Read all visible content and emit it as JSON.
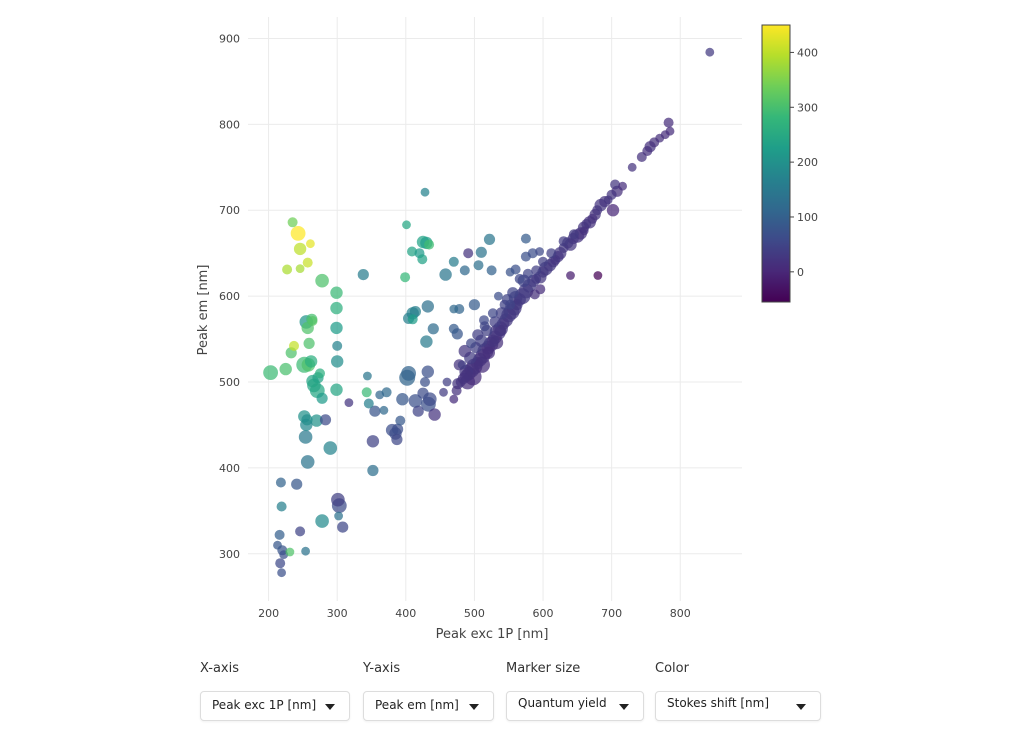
{
  "chart_data": {
    "type": "scatter",
    "xlabel": "Peak exc 1P [nm]",
    "ylabel": "Peak em [nm]",
    "xlim": [
      170,
      890
    ],
    "ylim": [
      245,
      925
    ],
    "xticks": [
      200,
      300,
      400,
      500,
      600,
      700,
      800
    ],
    "yticks": [
      300,
      400,
      500,
      600,
      700,
      800,
      900
    ],
    "grid": true,
    "size_variable": "Quantum yield",
    "color_variable": "Stokes shift [nm]",
    "colorbar": {
      "range": [
        -55,
        450
      ],
      "ticks": [
        0,
        100,
        200,
        300,
        400
      ],
      "colormap": "viridis",
      "stops": [
        "#440154",
        "#482878",
        "#3e4989",
        "#31688e",
        "#26828e",
        "#1f9e89",
        "#35b779",
        "#6ece58",
        "#b5de2b",
        "#fde725"
      ]
    },
    "points": [
      [
        843,
        884,
        0.3
      ],
      [
        783,
        802,
        0.4
      ],
      [
        785,
        792,
        0.3
      ],
      [
        778,
        788,
        0.3
      ],
      [
        770,
        784,
        0.3
      ],
      [
        762,
        779,
        0.4
      ],
      [
        756,
        774,
        0.5
      ],
      [
        752,
        769,
        0.4
      ],
      [
        744,
        762,
        0.4
      ],
      [
        730,
        750,
        0.3
      ],
      [
        716,
        728,
        0.3
      ],
      [
        705,
        730,
        0.4
      ],
      [
        708,
        722,
        0.5
      ],
      [
        700,
        718,
        0.4
      ],
      [
        695,
        712,
        0.3
      ],
      [
        690,
        710,
        0.5
      ],
      [
        684,
        706,
        0.6
      ],
      [
        679,
        700,
        0.4
      ],
      [
        676,
        695,
        0.5
      ],
      [
        672,
        690,
        0.4
      ],
      [
        702,
        700,
        0.6
      ],
      [
        668,
        686,
        0.6
      ],
      [
        663,
        684,
        0.4
      ],
      [
        659,
        680,
        0.5
      ],
      [
        655,
        673,
        0.6
      ],
      [
        650,
        670,
        0.7
      ],
      [
        644,
        667,
        0.5
      ],
      [
        640,
        660,
        0.6
      ],
      [
        636,
        662,
        0.5
      ],
      [
        630,
        656,
        0.4
      ],
      [
        625,
        650,
        0.6
      ],
      [
        622,
        646,
        0.5
      ],
      [
        618,
        642,
        0.4
      ],
      [
        615,
        640,
        0.5
      ],
      [
        610,
        636,
        0.6
      ],
      [
        604,
        632,
        0.7
      ],
      [
        600,
        628,
        0.5
      ],
      [
        596,
        622,
        0.6
      ],
      [
        590,
        620,
        0.4
      ],
      [
        586,
        618,
        0.6
      ],
      [
        580,
        612,
        0.7
      ],
      [
        575,
        606,
        0.8
      ],
      [
        570,
        600,
        0.9
      ],
      [
        566,
        596,
        0.6
      ],
      [
        562,
        590,
        0.5
      ],
      [
        558,
        586,
        0.8
      ],
      [
        554,
        582,
        0.9
      ],
      [
        550,
        578,
        0.8
      ],
      [
        546,
        572,
        0.7
      ],
      [
        542,
        568,
        0.6
      ],
      [
        538,
        562,
        0.8
      ],
      [
        534,
        558,
        0.9
      ],
      [
        530,
        552,
        0.7
      ],
      [
        527,
        548,
        0.6
      ],
      [
        524,
        544,
        0.8
      ],
      [
        520,
        540,
        0.7
      ],
      [
        516,
        536,
        0.9
      ],
      [
        512,
        530,
        0.8
      ],
      [
        508,
        526,
        0.7
      ],
      [
        504,
        522,
        0.6
      ],
      [
        500,
        518,
        0.9
      ],
      [
        496,
        514,
        0.8
      ],
      [
        492,
        510,
        0.7
      ],
      [
        488,
        507,
        0.6
      ],
      [
        484,
        504,
        0.5
      ],
      [
        480,
        500,
        0.4
      ],
      [
        476,
        498,
        0.5
      ],
      [
        572,
        618,
        0.6
      ],
      [
        560,
        598,
        0.7
      ],
      [
        548,
        596,
        0.5
      ],
      [
        544,
        590,
        0.4
      ],
      [
        556,
        604,
        0.5
      ],
      [
        566,
        620,
        0.4
      ],
      [
        578,
        626,
        0.4
      ],
      [
        590,
        630,
        0.4
      ],
      [
        600,
        640,
        0.4
      ],
      [
        612,
        650,
        0.4
      ],
      [
        630,
        664,
        0.4
      ],
      [
        645,
        672,
        0.4
      ],
      [
        660,
        676,
        0.3
      ],
      [
        680,
        624,
        0.3
      ],
      [
        640,
        624,
        0.3
      ],
      [
        575,
        646,
        0.4
      ],
      [
        585,
        650,
        0.4
      ],
      [
        595,
        652,
        0.3
      ],
      [
        575,
        667,
        0.4
      ],
      [
        560,
        631,
        0.4
      ],
      [
        552,
        628,
        0.3
      ],
      [
        535,
        600,
        0.3
      ],
      [
        527,
        580,
        0.4
      ],
      [
        518,
        560,
        0.5
      ],
      [
        510,
        548,
        0.6
      ],
      [
        502,
        540,
        0.5
      ],
      [
        494,
        528,
        0.6
      ],
      [
        514,
        572,
        0.4
      ],
      [
        500,
        590,
        0.5
      ],
      [
        525,
        630,
        0.4
      ],
      [
        510,
        651,
        0.5
      ],
      [
        522,
        666,
        0.5
      ],
      [
        506,
        636,
        0.4
      ],
      [
        460,
        500,
        0.3
      ],
      [
        455,
        488,
        0.3
      ],
      [
        470,
        480,
        0.3
      ],
      [
        478,
        520,
        0.5
      ],
      [
        486,
        536,
        0.6
      ],
      [
        495,
        545,
        0.4
      ],
      [
        505,
        555,
        0.5
      ],
      [
        515,
        565,
        0.4
      ],
      [
        596,
        608,
        0.4
      ],
      [
        588,
        602,
        0.4
      ],
      [
        538,
        560,
        0.5
      ],
      [
        532,
        546,
        0.7
      ],
      [
        521,
        534,
        0.6
      ],
      [
        511,
        520,
        0.9
      ],
      [
        498,
        506,
        1.0
      ],
      [
        490,
        500,
        0.8
      ],
      [
        488,
        512,
        0.7
      ],
      [
        474,
        490,
        0.4
      ],
      [
        482,
        520,
        0.3
      ],
      [
        530,
        570,
        0.5
      ],
      [
        540,
        580,
        0.6
      ],
      [
        552,
        590,
        0.4
      ],
      [
        475,
        556,
        0.5
      ],
      [
        470,
        562,
        0.4
      ],
      [
        478,
        585,
        0.4
      ],
      [
        470,
        585,
        0.3
      ],
      [
        440,
        562,
        0.5
      ],
      [
        432,
        588,
        0.6
      ],
      [
        458,
        625,
        0.6
      ],
      [
        486,
        630,
        0.4
      ],
      [
        430,
        547,
        0.6
      ],
      [
        432,
        512,
        0.6
      ],
      [
        435,
        480,
        0.7
      ],
      [
        433,
        474,
        0.8
      ],
      [
        425,
        487,
        0.5
      ],
      [
        428,
        500,
        0.4
      ],
      [
        442,
        462,
        0.6
      ],
      [
        418,
        466,
        0.5
      ],
      [
        414,
        478,
        0.7
      ],
      [
        404,
        510,
        0.8
      ],
      [
        402,
        505,
        0.9
      ],
      [
        395,
        480,
        0.6
      ],
      [
        392,
        455,
        0.4
      ],
      [
        388,
        445,
        0.5
      ],
      [
        385,
        440,
        0.6
      ],
      [
        387,
        433,
        0.5
      ],
      [
        380,
        444,
        0.6
      ],
      [
        372,
        488,
        0.4
      ],
      [
        368,
        467,
        0.3
      ],
      [
        362,
        485,
        0.3
      ],
      [
        355,
        466,
        0.5
      ],
      [
        352,
        431,
        0.6
      ],
      [
        352,
        397,
        0.5
      ],
      [
        346,
        475,
        0.4
      ],
      [
        344,
        507,
        0.3
      ],
      [
        343,
        488,
        0.4
      ],
      [
        338,
        625,
        0.5
      ],
      [
        317,
        476,
        0.3
      ],
      [
        308,
        331,
        0.5
      ],
      [
        303,
        356,
        0.8
      ],
      [
        301,
        363,
        0.7
      ],
      [
        302,
        344,
        0.3
      ],
      [
        290,
        423,
        0.7
      ],
      [
        283,
        456,
        0.5
      ],
      [
        278,
        338,
        0.7
      ],
      [
        270,
        455,
        0.6
      ],
      [
        278,
        481,
        0.5
      ],
      [
        271,
        490,
        0.8
      ],
      [
        266,
        496,
        0.7
      ],
      [
        264,
        501,
        0.6
      ],
      [
        272,
        505,
        0.5
      ],
      [
        275,
        510,
        0.4
      ],
      [
        262,
        524,
        0.6
      ],
      [
        258,
        520,
        0.7
      ],
      [
        252,
        520,
        0.9
      ],
      [
        259,
        545,
        0.5
      ],
      [
        257,
        563,
        0.6
      ],
      [
        263,
        573,
        0.5
      ],
      [
        264,
        571,
        0.4
      ],
      [
        255,
        570,
        0.7
      ],
      [
        252,
        460,
        0.6
      ],
      [
        256,
        456,
        0.5
      ],
      [
        255,
        450,
        0.6
      ],
      [
        254,
        436,
        0.7
      ],
      [
        257,
        407,
        0.7
      ],
      [
        241,
        381,
        0.5
      ],
      [
        246,
        326,
        0.4
      ],
      [
        254,
        303,
        0.3
      ],
      [
        219,
        355,
        0.4
      ],
      [
        218,
        383,
        0.4
      ],
      [
        216,
        322,
        0.4
      ],
      [
        213,
        310,
        0.3
      ],
      [
        220,
        304,
        0.4
      ],
      [
        222,
        299,
        0.3
      ],
      [
        217,
        289,
        0.4
      ],
      [
        219,
        278,
        0.3
      ],
      [
        231,
        302,
        0.3
      ],
      [
        203,
        511,
        0.8
      ],
      [
        225,
        515,
        0.6
      ],
      [
        233,
        534,
        0.5
      ],
      [
        237,
        542,
        0.4
      ],
      [
        227,
        631,
        0.4
      ],
      [
        246,
        632,
        0.3
      ],
      [
        257,
        639,
        0.4
      ],
      [
        246,
        655,
        0.6
      ],
      [
        261,
        661,
        0.3
      ],
      [
        243,
        673,
        0.8
      ],
      [
        235,
        686,
        0.4
      ],
      [
        278,
        618,
        0.7
      ],
      [
        299,
        604,
        0.6
      ],
      [
        299,
        586,
        0.6
      ],
      [
        299,
        563,
        0.6
      ],
      [
        300,
        524,
        0.6
      ],
      [
        299,
        491,
        0.6
      ],
      [
        300,
        542,
        0.4
      ],
      [
        404,
        574,
        0.5
      ],
      [
        410,
        580,
        0.6
      ],
      [
        414,
        582,
        0.5
      ],
      [
        410,
        573,
        0.4
      ],
      [
        399,
        622,
        0.4
      ],
      [
        401,
        683,
        0.3
      ],
      [
        409,
        652,
        0.4
      ],
      [
        425,
        663,
        0.6
      ],
      [
        430,
        662,
        0.6
      ],
      [
        420,
        650,
        0.4
      ],
      [
        424,
        643,
        0.4
      ],
      [
        434,
        660,
        0.4
      ],
      [
        428,
        721,
        0.3
      ],
      [
        470,
        640,
        0.4
      ],
      [
        491,
        650,
        0.4
      ]
    ],
    "colors": [
      31,
      11,
      11,
      12,
      14,
      15,
      18,
      17,
      18,
      20,
      12,
      25,
      14,
      22,
      21,
      20,
      22,
      21,
      19,
      18,
      0,
      18,
      21,
      21,
      18,
      20,
      23,
      22,
      26,
      26,
      25,
      24,
      24,
      25,
      26,
      28,
      28,
      26,
      30,
      32,
      32,
      31,
      30,
      30,
      28,
      28,
      28,
      28,
      26,
      24,
      24,
      24,
      22,
      21,
      20,
      20,
      20,
      18,
      18,
      18,
      18,
      18,
      18,
      19,
      20,
      20,
      22,
      46,
      38,
      48,
      46,
      48,
      54,
      48,
      40,
      40,
      38,
      34,
      32,
      16,
      -56,
      -16,
      71,
      65,
      57,
      92,
      71,
      76,
      65,
      53,
      42,
      38,
      38,
      34,
      58,
      90,
      105,
      141,
      144,
      130,
      40,
      33,
      10,
      20,
      22,
      50,
      40,
      50,
      12,
      14,
      22,
      14,
      13,
      9,
      8,
      10,
      24,
      16,
      38,
      40,
      40,
      48,
      81,
      92,
      107,
      115,
      122,
      130,
      144,
      117,
      156,
      70,
      60,
      72,
      62,
      72,
      20,
      48,
      70,
      106,
      108,
      85,
      86,
      67,
      60,
      55,
      64,
      120,
      116,
      111,
      79,
      45,
      129,
      163,
      143,
      287,
      159,
      23,
      53,
      62,
      42,
      133,
      173,
      60,
      185,
      203,
      219,
      243,
      241,
      241,
      235,
      262,
      262,
      305,
      290,
      305,
      309,
      299,
      315,
      208,
      200,
      195,
      182,
      150,
      140,
      85,
      48,
      136,
      165,
      106,
      97,
      84,
      77,
      72,
      58,
      71,
      308,
      290,
      301,
      305,
      404,
      386,
      382,
      409,
      400,
      431,
      451,
      338,
      305,
      287,
      263,
      224,
      192,
      242,
      170,
      163,
      168,
      163,
      223,
      282,
      243,
      238,
      236,
      226,
      219,
      234,
      293,
      170,
      159
    ]
  },
  "controls": {
    "x_axis": {
      "label": "X-axis",
      "value": "Peak exc 1P [nm]"
    },
    "y_axis": {
      "label": "Y-axis",
      "value": "Peak em [nm]"
    },
    "marker_size": {
      "label": "Marker size",
      "value": "Quantum yield"
    },
    "color": {
      "label": "Color",
      "value": "Stokes shift [nm]"
    }
  }
}
